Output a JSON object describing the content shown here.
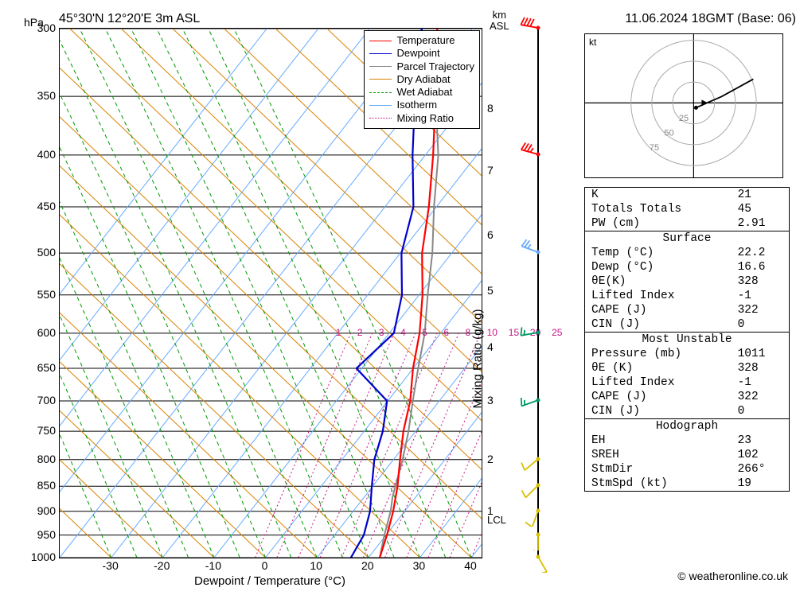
{
  "title": {
    "location": "45°30'N 12°20'E 3m ASL",
    "datetime": "11.06.2024 18GMT (Base: 06)"
  },
  "axes": {
    "y_left_label": "hPa",
    "y_right_label_line1": "km",
    "y_right_label_line2": "ASL",
    "x_label": "Dewpoint / Temperature (°C)",
    "mixing_label": "Mixing Ratio (g/kg)",
    "lcl_label": "LCL",
    "kt_label": "kt",
    "x_ticks": [
      -30,
      -20,
      -10,
      0,
      10,
      20,
      30,
      40
    ],
    "x_range": [
      -40,
      42
    ],
    "hpa_ticks": [
      300,
      350,
      400,
      450,
      500,
      550,
      600,
      650,
      700,
      750,
      800,
      850,
      900,
      950,
      1000
    ],
    "km_ticks": [
      1,
      2,
      3,
      4,
      5,
      6,
      7,
      8
    ],
    "mixing_values": [
      1,
      2,
      3,
      4,
      5,
      6,
      8,
      10,
      15,
      20,
      25
    ]
  },
  "legend": [
    {
      "label": "Temperature",
      "color": "#ff0000",
      "style": "solid"
    },
    {
      "label": "Dewpoint",
      "color": "#0000cc",
      "style": "solid"
    },
    {
      "label": "Parcel Trajectory",
      "color": "#888888",
      "style": "solid"
    },
    {
      "label": "Dry Adiabat",
      "color": "#d98200",
      "style": "solid"
    },
    {
      "label": "Wet Adiabat",
      "color": "#009900",
      "style": "dashed"
    },
    {
      "label": "Isotherm",
      "color": "#66aaff",
      "style": "solid"
    },
    {
      "label": "Mixing Ratio",
      "color": "#c71585",
      "style": "dotted"
    }
  ],
  "colors": {
    "temperature": "#ff0000",
    "dewpoint": "#0000cc",
    "parcel": "#888888",
    "dry_adiabat": "#d98200",
    "wet_adiabat": "#009900",
    "isotherm": "#66aaff",
    "mixing_ratio": "#c71585",
    "grid": "#000000",
    "background": "#ffffff"
  },
  "profiles": {
    "temperature": [
      [
        22.2,
        1000
      ],
      [
        21.5,
        950
      ],
      [
        20.5,
        900
      ],
      [
        19,
        850
      ],
      [
        17,
        800
      ],
      [
        15,
        750
      ],
      [
        13.5,
        700
      ],
      [
        11,
        650
      ],
      [
        9,
        600
      ],
      [
        6,
        550
      ],
      [
        2,
        500
      ],
      [
        -1,
        450
      ],
      [
        -5,
        400
      ],
      [
        -10,
        350
      ],
      [
        -16,
        300
      ]
    ],
    "dewpoint": [
      [
        16.6,
        1000
      ],
      [
        17,
        950
      ],
      [
        16,
        900
      ],
      [
        14,
        850
      ],
      [
        12,
        800
      ],
      [
        11,
        750
      ],
      [
        9,
        700
      ],
      [
        0,
        650
      ],
      [
        4,
        600
      ],
      [
        2,
        550
      ],
      [
        -2,
        500
      ],
      [
        -4,
        450
      ],
      [
        -9,
        400
      ],
      [
        -14,
        350
      ],
      [
        -19,
        300
      ]
    ],
    "parcel": [
      [
        22.2,
        1000
      ],
      [
        21,
        950
      ],
      [
        20,
        900
      ],
      [
        19,
        870
      ],
      [
        17.5,
        800
      ],
      [
        16,
        750
      ],
      [
        14,
        700
      ],
      [
        12,
        650
      ],
      [
        10,
        600
      ],
      [
        7,
        550
      ],
      [
        4,
        500
      ],
      [
        0,
        450
      ],
      [
        -4,
        400
      ],
      [
        -10,
        350
      ],
      [
        -16,
        300
      ]
    ]
  },
  "wind_barbs": [
    {
      "hpa": 300,
      "color": "#ff0000",
      "dir": 280,
      "spd": 40
    },
    {
      "hpa": 400,
      "color": "#ff0000",
      "dir": 285,
      "spd": 35
    },
    {
      "hpa": 500,
      "color": "#66aaff",
      "dir": 290,
      "spd": 25
    },
    {
      "hpa": 600,
      "color": "#009966",
      "dir": 260,
      "spd": 15
    },
    {
      "hpa": 700,
      "color": "#009966",
      "dir": 250,
      "spd": 15
    },
    {
      "hpa": 800,
      "color": "#d9c000",
      "dir": 230,
      "spd": 10
    },
    {
      "hpa": 850,
      "color": "#d9c000",
      "dir": 225,
      "spd": 10
    },
    {
      "hpa": 900,
      "color": "#d9c000",
      "dir": 200,
      "spd": 10
    },
    {
      "hpa": 950,
      "color": "#d9c000",
      "dir": 180,
      "spd": 5
    },
    {
      "hpa": 1000,
      "color": "#d9c000",
      "dir": 150,
      "spd": 5
    }
  ],
  "lcl_hpa": 920,
  "indices": {
    "top": [
      {
        "k": "K",
        "v": "21"
      },
      {
        "k": "Totals Totals",
        "v": "45"
      },
      {
        "k": "PW (cm)",
        "v": "2.91"
      }
    ],
    "surface_header": "Surface",
    "surface": [
      {
        "k": "Temp (°C)",
        "v": "22.2"
      },
      {
        "k": "Dewp (°C)",
        "v": "16.6"
      },
      {
        "k": "θE(K)",
        "v": "328"
      },
      {
        "k": "Lifted Index",
        "v": "-1"
      },
      {
        "k": "CAPE (J)",
        "v": "322"
      },
      {
        "k": "CIN (J)",
        "v": "0"
      }
    ],
    "mu_header": "Most Unstable",
    "mu": [
      {
        "k": "Pressure (mb)",
        "v": "1011"
      },
      {
        "k": "θE (K)",
        "v": "328"
      },
      {
        "k": "Lifted Index",
        "v": "-1"
      },
      {
        "k": "CAPE (J)",
        "v": "322"
      },
      {
        "k": "CIN (J)",
        "v": "0"
      }
    ],
    "hodo_header": "Hodograph",
    "hodo": [
      {
        "k": "EH",
        "v": "23"
      },
      {
        "k": "SREH",
        "v": "102"
      },
      {
        "k": "StmDir",
        "v": "266°"
      },
      {
        "k": "StmSpd (kt)",
        "v": "19"
      }
    ]
  },
  "hodograph": {
    "rings": [
      25,
      50,
      75
    ],
    "ring_color": "#aaaaaa",
    "path_color": "#000000"
  },
  "copyright": "© weatheronline.co.uk"
}
